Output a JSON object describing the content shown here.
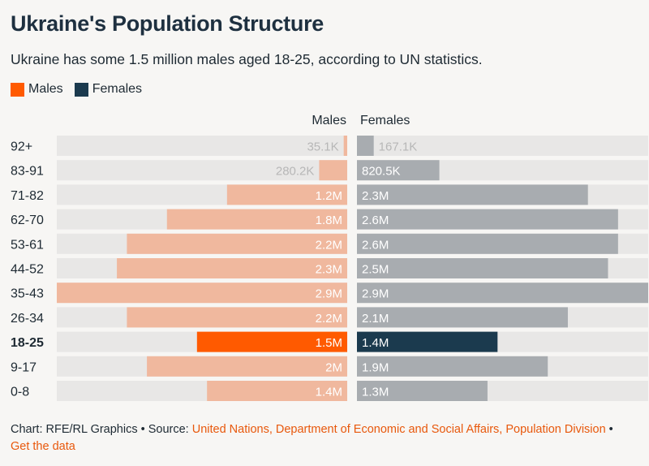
{
  "header": {
    "title": "Ukraine's Population Structure",
    "subtitle": "Ukraine has some 1.5 million males aged 18-25, according to UN statistics."
  },
  "legend": {
    "males_label": "Males",
    "females_label": "Females"
  },
  "columns": {
    "males": "Males",
    "females": "Females"
  },
  "colors": {
    "male_highlight": "#ff5a00",
    "female_highlight": "#1b3a4e",
    "male_muted": "#f0b89e",
    "female_muted": "#a8acb0",
    "track": "#e8e7e6",
    "label_on_muted": "#ffffff",
    "outside_label": "#b7b7b7"
  },
  "footer": {
    "chart_credit": "Chart: RFE/RL Graphics • Source: ",
    "source_link": "United Nations, Department of Economic and Social Affairs, Population Division",
    "separator": " •",
    "data_link": "Get the data"
  },
  "chart_data": {
    "type": "bar",
    "orientation": "horizontal-butterfly",
    "categories": [
      "92+",
      "83-91",
      "71-82",
      "62-70",
      "53-61",
      "44-52",
      "35-43",
      "26-34",
      "18-25",
      "9-17",
      "0-8"
    ],
    "highlight_category": "18-25",
    "series": [
      {
        "name": "Males",
        "values": [
          35100,
          280200,
          1200000,
          1800000,
          2200000,
          2300000,
          2900000,
          2200000,
          1500000,
          2000000,
          1400000
        ],
        "labels": [
          "35.1K",
          "280.2K",
          "1.2M",
          "1.8M",
          "2.2M",
          "2.3M",
          "2.9M",
          "2.2M",
          "1.5M",
          "2M",
          "1.4M"
        ]
      },
      {
        "name": "Females",
        "values": [
          167100,
          820500,
          2300000,
          2600000,
          2600000,
          2500000,
          2900000,
          2100000,
          1400000,
          1900000,
          1300000
        ],
        "labels": [
          "167.1K",
          "820.5K",
          "2.3M",
          "2.6M",
          "2.6M",
          "2.5M",
          "2.9M",
          "2.1M",
          "1.4M",
          "1.9M",
          "1.3M"
        ]
      }
    ],
    "xlim": [
      0,
      2900000
    ],
    "legend_position": "top-left"
  }
}
